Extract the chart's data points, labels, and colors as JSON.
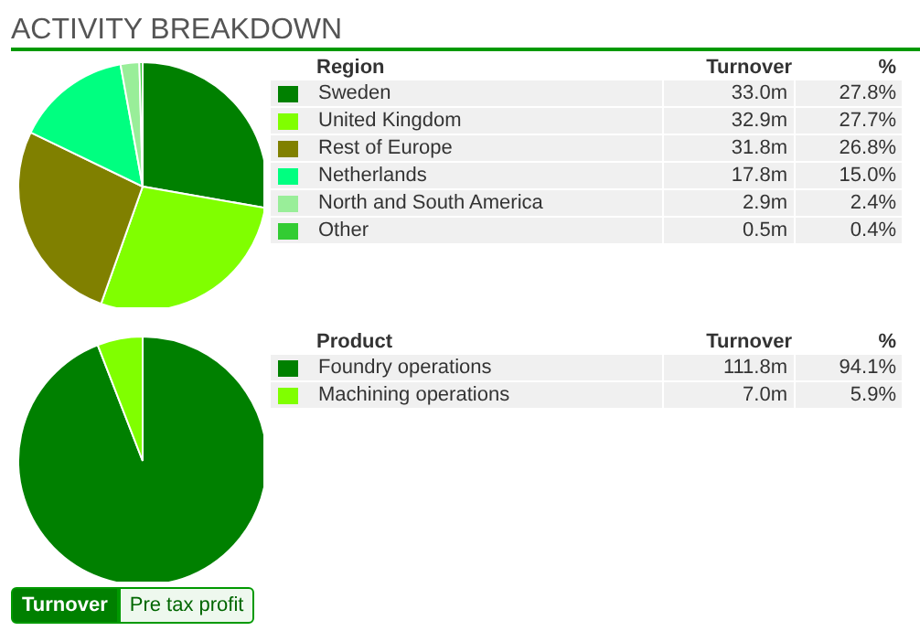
{
  "chart_data": [
    {
      "type": "pie",
      "title": "ACTIVITY BREAKDOWN",
      "legend_title": "Region",
      "ylabel": "Turnover",
      "categories": [
        "Sweden",
        "United Kingdom",
        "Rest of Europe",
        "Netherlands",
        "North and South America",
        "Other"
      ],
      "values": [
        33.0,
        32.9,
        31.8,
        17.8,
        2.9,
        0.5
      ],
      "value_labels": [
        "33.0m",
        "32.9m",
        "31.8m",
        "17.8m",
        "2.9m",
        "0.5m"
      ],
      "colors": [
        "#008000",
        "#80ff00",
        "#808000",
        "#00ff80",
        "#99ee99",
        "#33cc33"
      ],
      "legend": "right",
      "annotations": [
        "%",
        "27.8%",
        "27.7%",
        "26.8%",
        "15.0%",
        "2.4%",
        "0.4%"
      ]
    },
    {
      "type": "pie",
      "legend_title": "Product",
      "ylabel": "Turnover",
      "categories": [
        "Foundry operations",
        "Machining operations"
      ],
      "values": [
        111.8,
        7.0
      ],
      "value_labels": [
        "111.8m",
        "7.0m"
      ],
      "colors": [
        "#008000",
        "#80ff00"
      ],
      "legend": "right",
      "annotations": [
        "%",
        "94.1%",
        "5.9%",
        "Turnover",
        "Pre tax profit"
      ]
    }
  ]
}
